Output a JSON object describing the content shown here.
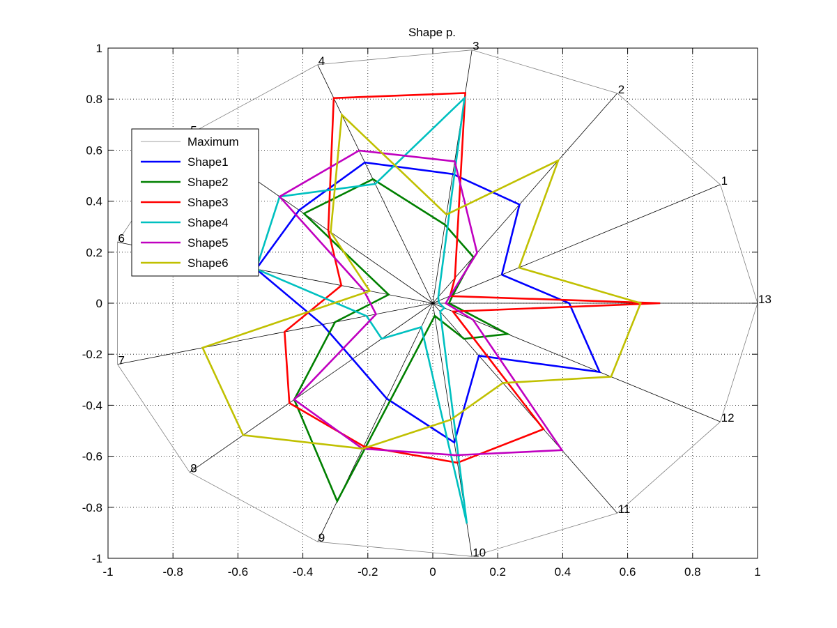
{
  "chart_data": {
    "type": "radar",
    "title": "Shape p.",
    "grid": true,
    "xlim": [
      -1,
      1
    ],
    "ylim": [
      -1,
      1
    ],
    "x_ticks": [
      "-1",
      "-0.8",
      "-0.6",
      "-0.4",
      "-0.2",
      "0",
      "0.2",
      "0.4",
      "0.6",
      "0.8",
      "1"
    ],
    "y_ticks": [
      "1",
      "0.8",
      "0.6",
      "0.4",
      "0.2",
      "0",
      "-0.2",
      "-0.4",
      "-0.6",
      "-0.8",
      "-1"
    ],
    "axes_labels": [
      "1",
      "2",
      "3",
      "4",
      "5",
      "6",
      "7",
      "8",
      "9",
      "10",
      "11",
      "12",
      "13"
    ],
    "legend_position": "top-left",
    "series": [
      {
        "name": "Maximum",
        "color": "#808080",
        "values": [
          1,
          1,
          1,
          1,
          1,
          1,
          1,
          1,
          1,
          1,
          1,
          1,
          1
        ]
      },
      {
        "name": "Shape1",
        "color": "#0000ff",
        "values": [
          0.24,
          0.47,
          0.51,
          0.59,
          0.55,
          0.56,
          0.35,
          0.33,
          0.4,
          0.55,
          0.25,
          0.58,
          0.42
        ]
      },
      {
        "name": "Shape2",
        "color": "#008000",
        "values": [
          0.07,
          0.22,
          0.31,
          0.52,
          0.53,
          0.14,
          0.31,
          0.57,
          0.83,
          0.05,
          0.17,
          0.26,
          0.05
        ]
      },
      {
        "name": "Shape3",
        "color": "#ff0000",
        "values": [
          0.06,
          0.12,
          0.83,
          0.86,
          0.43,
          0.29,
          0.47,
          0.59,
          0.6,
          0.63,
          0.6,
          0.07,
          0.7
        ]
      },
      {
        "name": "Shape4",
        "color": "#00c0c0",
        "values": [
          0.02,
          0.03,
          0.81,
          0.5,
          0.63,
          0.56,
          0.21,
          0.21,
          0.1,
          0.87,
          0.04,
          0.04,
          0.02
        ]
      },
      {
        "name": "Shape5",
        "color": "#c000c0",
        "values": [
          0.06,
          0.24,
          0.56,
          0.64,
          0.63,
          0.22,
          0.18,
          0.57,
          0.61,
          0.6,
          0.7,
          0.14,
          0.04
        ]
      },
      {
        "name": "Shape6",
        "color": "#c0c000",
        "values": [
          0.3,
          0.68,
          0.35,
          0.79,
          0.42,
          0.2,
          0.73,
          0.78,
          0.61,
          0.46,
          0.38,
          0.62,
          0.64
        ]
      }
    ]
  }
}
